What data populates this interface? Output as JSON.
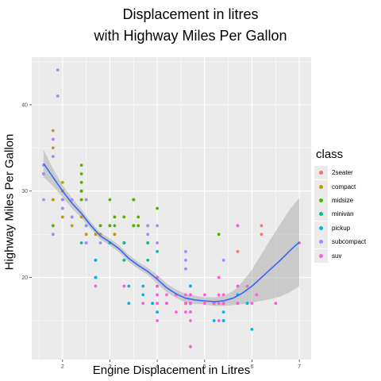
{
  "chart_data": {
    "type": "scatter",
    "title": "Displacement in litres",
    "subtitle": "with Highway Miles Per Gallon",
    "xlabel": "Engine Displacement in Litres",
    "ylabel": "Highway Miles Per Gallon",
    "xlim": [
      1.35,
      7.25
    ],
    "ylim": [
      10.5,
      45.5
    ],
    "x_ticks": [
      2,
      3,
      4,
      5,
      6,
      7
    ],
    "y_ticks": [
      20,
      30,
      40
    ],
    "grid": true,
    "legend": {
      "title": "class",
      "position": "right"
    },
    "series": [
      {
        "name": "2seater",
        "color": "#F8766D",
        "points": [
          [
            5.7,
            26
          ],
          [
            5.7,
            23
          ],
          [
            6.2,
            26
          ],
          [
            6.2,
            25
          ],
          [
            7.0,
            24
          ]
        ]
      },
      {
        "name": "compact",
        "color": "#C49A00",
        "points": [
          [
            1.8,
            29
          ],
          [
            1.8,
            29
          ],
          [
            2.0,
            31
          ],
          [
            2.0,
            30
          ],
          [
            2.8,
            26
          ],
          [
            2.8,
            26
          ],
          [
            3.1,
            27
          ],
          [
            1.8,
            26
          ],
          [
            1.8,
            25
          ],
          [
            2.0,
            28
          ],
          [
            2.0,
            27
          ],
          [
            2.8,
            25
          ],
          [
            2.8,
            25
          ],
          [
            3.1,
            25
          ],
          [
            3.1,
            25
          ],
          [
            1.8,
            37
          ],
          [
            1.8,
            35
          ],
          [
            1.8,
            29
          ],
          [
            2.0,
            29
          ],
          [
            2.2,
            27
          ],
          [
            2.2,
            26
          ],
          [
            2.4,
            27
          ],
          [
            2.4,
            30
          ],
          [
            3.0,
            26
          ],
          [
            3.3,
            27
          ],
          [
            2.5,
            25
          ],
          [
            2.7,
            25
          ],
          [
            3.0,
            26
          ]
        ]
      },
      {
        "name": "midsize",
        "color": "#53B400",
        "points": [
          [
            2.8,
            26
          ],
          [
            3.1,
            27
          ],
          [
            2.4,
            30
          ],
          [
            2.4,
            33
          ],
          [
            2.4,
            32
          ],
          [
            3.5,
            29
          ],
          [
            3.5,
            26
          ],
          [
            3.8,
            26
          ],
          [
            3.8,
            26
          ],
          [
            4.0,
            28
          ],
          [
            2.5,
            29
          ],
          [
            3.0,
            26
          ],
          [
            3.3,
            24
          ],
          [
            3.5,
            26
          ],
          [
            2.4,
            29
          ],
          [
            2.4,
            31
          ],
          [
            2.4,
            30
          ],
          [
            3.5,
            26
          ],
          [
            3.5,
            29
          ],
          [
            2.5,
            26
          ],
          [
            2.5,
            26
          ],
          [
            3.3,
            27
          ],
          [
            3.0,
            29
          ],
          [
            3.0,
            26
          ],
          [
            3.3,
            24
          ],
          [
            3.5,
            29
          ],
          [
            5.3,
            25
          ],
          [
            1.8,
            26
          ],
          [
            2.0,
            29
          ],
          [
            2.0,
            28
          ],
          [
            2.0,
            29
          ],
          [
            2.4,
            29
          ],
          [
            3.6,
            27
          ],
          [
            3.6,
            26
          ],
          [
            3.1,
            26
          ],
          [
            3.5,
            29
          ],
          [
            3.5,
            26
          ],
          [
            3.8,
            24
          ]
        ]
      },
      {
        "name": "minivan",
        "color": "#00C094",
        "points": [
          [
            2.4,
            24
          ],
          [
            3.0,
            24
          ],
          [
            3.3,
            22
          ],
          [
            3.3,
            22
          ],
          [
            3.3,
            24
          ],
          [
            3.3,
            24
          ],
          [
            3.3,
            24
          ],
          [
            3.8,
            22
          ],
          [
            3.8,
            24
          ],
          [
            3.8,
            24
          ],
          [
            4.0,
            23
          ]
        ]
      },
      {
        "name": "pickup",
        "color": "#00B6EB",
        "points": [
          [
            3.7,
            19
          ],
          [
            3.7,
            18
          ],
          [
            3.9,
            17
          ],
          [
            3.9,
            17
          ],
          [
            4.7,
            16
          ],
          [
            4.7,
            18
          ],
          [
            4.7,
            17
          ],
          [
            5.2,
            15
          ],
          [
            5.2,
            17
          ],
          [
            5.7,
            17
          ],
          [
            5.9,
            17
          ],
          [
            4.7,
            19
          ],
          [
            4.7,
            17
          ],
          [
            5.2,
            17
          ],
          [
            5.7,
            18
          ],
          [
            5.9,
            17
          ],
          [
            2.7,
            20
          ],
          [
            2.7,
            22
          ],
          [
            3.4,
            17
          ],
          [
            3.4,
            19
          ],
          [
            4.0,
            18
          ],
          [
            4.0,
            20
          ],
          [
            4.7,
            17
          ],
          [
            4.7,
            19
          ],
          [
            5.4,
            15
          ],
          [
            5.4,
            16
          ],
          [
            5.4,
            15
          ],
          [
            4.6,
            17
          ],
          [
            5.4,
            17
          ],
          [
            5.4,
            17
          ],
          [
            4.0,
            16
          ],
          [
            5.4,
            17
          ],
          [
            2.7,
            20
          ],
          [
            2.7,
            20
          ],
          [
            2.7,
            22
          ],
          [
            2.7,
            22
          ],
          [
            4.0,
            19
          ],
          [
            4.7,
            17
          ],
          [
            6.0,
            14
          ]
        ]
      },
      {
        "name": "subcompact",
        "color": "#A58AFF",
        "points": [
          [
            3.8,
            26
          ],
          [
            3.8,
            25
          ],
          [
            4.0,
            26
          ],
          [
            4.0,
            24
          ],
          [
            4.6,
            21
          ],
          [
            4.6,
            22
          ],
          [
            4.6,
            23
          ],
          [
            5.4,
            22
          ],
          [
            1.6,
            33
          ],
          [
            1.6,
            32
          ],
          [
            1.6,
            32
          ],
          [
            1.6,
            29
          ],
          [
            1.6,
            32
          ],
          [
            1.8,
            34
          ],
          [
            1.8,
            36
          ],
          [
            1.8,
            36
          ],
          [
            2.0,
            29
          ],
          [
            1.9,
            44
          ],
          [
            2.0,
            29
          ],
          [
            2.5,
            26
          ],
          [
            2.5,
            29
          ],
          [
            2.2,
            29
          ],
          [
            2.2,
            27
          ],
          [
            2.5,
            24
          ],
          [
            2.5,
            24
          ],
          [
            1.9,
            41
          ],
          [
            2.0,
            29
          ],
          [
            2.0,
            28
          ],
          [
            2.5,
            24
          ],
          [
            2.8,
            24
          ],
          [
            1.8,
            25
          ]
        ]
      },
      {
        "name": "suv",
        "color": "#FB61D7",
        "points": [
          [
            5.3,
            20
          ],
          [
            5.3,
            15
          ],
          [
            5.3,
            20
          ],
          [
            5.7,
            17
          ],
          [
            6.0,
            17
          ],
          [
            5.7,
            26
          ],
          [
            6.5,
            17
          ],
          [
            4.7,
            17
          ],
          [
            4.7,
            12
          ],
          [
            4.7,
            12
          ],
          [
            4.7,
            16
          ],
          [
            4.7,
            17
          ],
          [
            5.2,
            17
          ],
          [
            5.7,
            19
          ],
          [
            5.9,
            19
          ],
          [
            4.6,
            17
          ],
          [
            5.4,
            17
          ],
          [
            5.4,
            17
          ],
          [
            4.0,
            19
          ],
          [
            4.0,
            17
          ],
          [
            4.0,
            19
          ],
          [
            4.0,
            19
          ],
          [
            4.6,
            17
          ],
          [
            5.0,
            17
          ],
          [
            4.2,
            17
          ],
          [
            4.2,
            17
          ],
          [
            4.6,
            17
          ],
          [
            4.6,
            17
          ],
          [
            4.6,
            18
          ],
          [
            5.4,
            17
          ],
          [
            5.4,
            18
          ],
          [
            4.0,
            15
          ],
          [
            4.0,
            18
          ],
          [
            4.6,
            17
          ],
          [
            5.0,
            17
          ],
          [
            3.3,
            19
          ],
          [
            3.3,
            19
          ],
          [
            4.0,
            17
          ],
          [
            4.0,
            19
          ],
          [
            4.7,
            17
          ],
          [
            5.7,
            17
          ],
          [
            2.7,
            19
          ],
          [
            4.0,
            18
          ],
          [
            4.7,
            17
          ],
          [
            4.7,
            15
          ],
          [
            3.7,
            17
          ],
          [
            4.7,
            18
          ],
          [
            5.7,
            19
          ],
          [
            6.1,
            18
          ],
          [
            4.0,
            20
          ],
          [
            4.0,
            20
          ],
          [
            4.4,
            16
          ],
          [
            4.4,
            18
          ],
          [
            5.3,
            17
          ],
          [
            5.3,
            18
          ],
          [
            4.6,
            17
          ],
          [
            4.6,
            16
          ],
          [
            5.0,
            17
          ],
          [
            5.0,
            18
          ],
          [
            4.2,
            17
          ],
          [
            4.2,
            18
          ]
        ]
      }
    ],
    "smooth": {
      "method": "loess",
      "color": "#3366FF",
      "x": [
        1.6,
        1.8,
        2.0,
        2.2,
        2.4,
        2.6,
        2.8,
        3.0,
        3.2,
        3.4,
        3.6,
        3.8,
        4.0,
        4.2,
        4.4,
        4.6,
        4.8,
        5.0,
        5.2,
        5.4,
        5.6,
        5.8,
        6.0,
        6.2,
        6.4,
        6.6,
        6.8,
        7.0
      ],
      "y": [
        33.2,
        31.6,
        30.0,
        28.6,
        27.4,
        26.0,
        24.8,
        24.1,
        23.3,
        22.2,
        21.4,
        20.7,
        19.8,
        18.8,
        18.1,
        17.6,
        17.4,
        17.3,
        17.2,
        17.3,
        17.6,
        18.2,
        19.0,
        20.0,
        21.0,
        22.0,
        23.1,
        24.1
      ],
      "lower": [
        31.6,
        30.6,
        29.3,
        28.0,
        26.9,
        25.6,
        24.4,
        23.7,
        22.9,
        21.8,
        21.0,
        20.3,
        19.3,
        18.3,
        17.6,
        17.1,
        16.9,
        16.9,
        16.7,
        16.7,
        16.8,
        16.9,
        17.1,
        17.3,
        17.5,
        17.8,
        18.3,
        19.0
      ],
      "upper": [
        34.8,
        32.6,
        30.7,
        29.2,
        27.9,
        26.4,
        25.2,
        24.5,
        23.7,
        22.6,
        21.8,
        21.1,
        20.3,
        19.3,
        18.6,
        18.1,
        17.9,
        17.7,
        17.7,
        17.9,
        18.4,
        19.5,
        20.9,
        22.7,
        24.5,
        26.2,
        27.9,
        29.2
      ]
    }
  }
}
